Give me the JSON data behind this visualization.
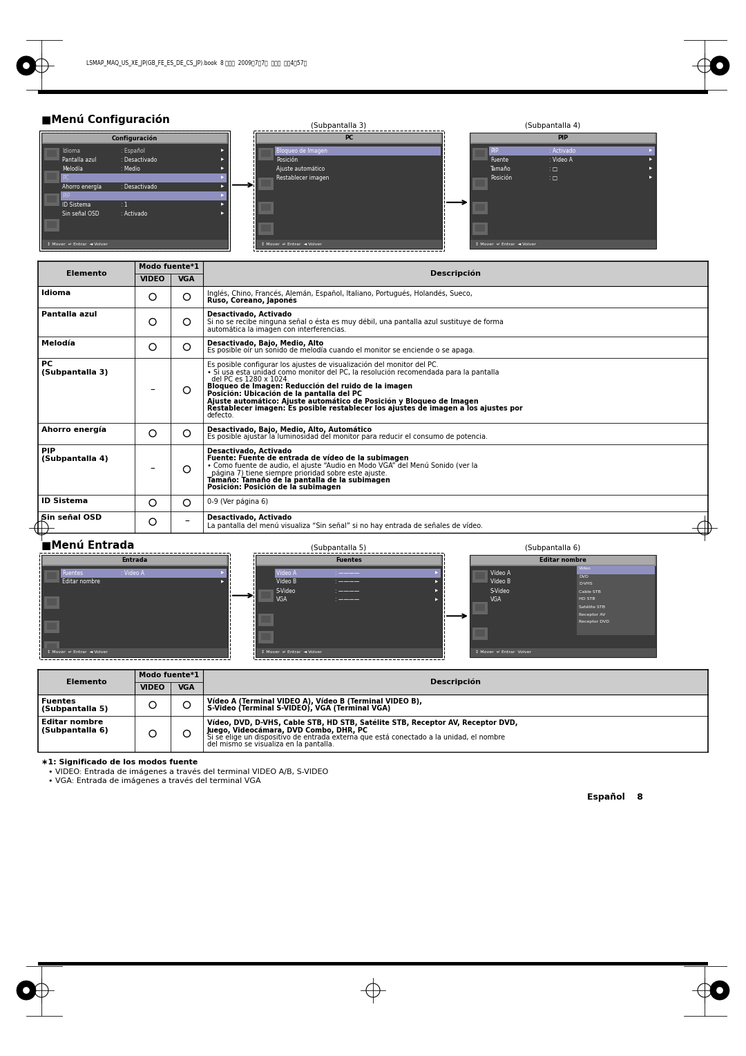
{
  "bg_color": "#ffffff",
  "page_header_text": "LSMAP_MAQ_US_XE_JP(GB_FE_ES_DE_CS_JP).book  8 ページ  2009年7月7日  火曜日  午後4時57分",
  "section1_title": "■Menú Configuración",
  "section2_title": "■Menú Entrada",
  "subpanel3_label": "(Subpantalla 3)",
  "subpanel4_label": "(Subpantalla 4)",
  "subpanel5_label": "(Subpantalla 5)",
  "subpanel6_label": "(Subpantalla 6)",
  "screen1_title": "Configuración",
  "screen1_lines": [
    [
      "Idioma",
      ": Español",
      true
    ],
    [
      "Pantalla azul",
      ": Desactivado",
      false
    ],
    [
      "Melodía",
      ": Medio",
      false
    ],
    [
      "PC",
      "",
      true
    ],
    [
      "Ahorro energía",
      ": Desactivado",
      false
    ],
    [
      "PIP",
      "",
      true
    ],
    [
      "ID Sistema",
      ": 1",
      false
    ],
    [
      "Sin señal OSD",
      ": Activado",
      false
    ]
  ],
  "screen2_title": "PC",
  "screen2_lines": [
    "Bloqueo de Imagen",
    "Posición",
    "Ajuste automático",
    "Restablecer imagen"
  ],
  "screen3_title": "PIP",
  "screen3_lines": [
    [
      "PIP",
      ": Activado"
    ],
    [
      "Fuente",
      ": Video A"
    ],
    [
      "Tamaño",
      ": □"
    ],
    [
      "Posición",
      ": □"
    ]
  ],
  "screen4_title": "Entrada",
  "screen4_lines": [
    [
      "Fuentes",
      ": Video A"
    ],
    [
      "Editar nombre",
      ""
    ]
  ],
  "screen5_title": "Fuentes",
  "screen5_lines": [
    [
      "Vídeo A",
      ": ————"
    ],
    [
      "Vídeo B",
      ": ————"
    ],
    [
      "S-Video",
      ": ————"
    ],
    [
      "VGA",
      ": ————"
    ]
  ],
  "screen6_title": "Editar nombre",
  "screen6_left": [
    "Vídeo A",
    "Vídeo B",
    "S-Video",
    "VGA"
  ],
  "screen6_right": [
    "Vídeo",
    "DVD",
    "D-VHS",
    "Cable STB",
    "HD STB",
    "Satélite STB",
    "Receptor AV",
    "Receptor DVD"
  ],
  "table1_rows": [
    {
      "element": "Idioma",
      "video": "O",
      "vga": "O",
      "lines": [
        {
          "bold": false,
          "text": "Inglés, Chino, Francés, Alemán, Español, Italiano, Portugués, Holandés, Sueco,"
        },
        {
          "bold": true,
          "text": "Ruso, Coreano, Japonés"
        }
      ]
    },
    {
      "element": "Pantalla azul",
      "video": "O",
      "vga": "O",
      "lines": [
        {
          "bold": true,
          "text": "Desactivado, Activado"
        },
        {
          "bold": false,
          "text": "Si no se recibe ninguna señal o ésta es muy débil, una pantalla azul sustituye de forma"
        },
        {
          "bold": false,
          "text": "automática la imagen con interferencias."
        }
      ]
    },
    {
      "element": "Melodía",
      "video": "O",
      "vga": "O",
      "lines": [
        {
          "bold": true,
          "text": "Desactivado, Bajo, Medio, Alto"
        },
        {
          "bold": false,
          "text": "Es posible oír un sonido de melodía cuando el monitor se enciende o se apaga."
        }
      ]
    },
    {
      "element": "PC\n(Subpantalla 3)",
      "video": "–",
      "vga": "O",
      "lines": [
        {
          "bold": false,
          "text": "Es posible configurar los ajustes de visualización del monitor del PC."
        },
        {
          "bold": false,
          "text": "• Si usa esta unidad como monitor del PC, la resolución recomendada para la pantalla"
        },
        {
          "bold": false,
          "text": "  del PC es 1280 x 1024."
        },
        {
          "bold": true,
          "text": "Bloqueo de Imagen: Reducción del ruido de la imagen"
        },
        {
          "bold": true,
          "text": "Posición: Ubicación de la pantalla del PC"
        },
        {
          "bold": true,
          "text": "Ajuste automático: Ajuste automático de Posición y Bloqueo de Imagen"
        },
        {
          "bold": true,
          "text": "Restablecer imagen: Es posible restablecer los ajustes de imagen a los ajustes por"
        },
        {
          "bold": false,
          "text": "defecto."
        }
      ]
    },
    {
      "element": "Ahorro energía",
      "video": "O",
      "vga": "O",
      "lines": [
        {
          "bold": true,
          "text": "Desactivado, Bajo, Medio, Alto, Automático"
        },
        {
          "bold": false,
          "text": "Es posible ajustar la luminosidad del monitor para reducir el consumo de potencia."
        }
      ]
    },
    {
      "element": "PIP\n(Subpantalla 4)",
      "video": "–",
      "vga": "O",
      "lines": [
        {
          "bold": true,
          "text": "Desactivado, Activado"
        },
        {
          "bold": true,
          "text": "Fuente: Fuente de entrada de vídeo de la subimagen"
        },
        {
          "bold": false,
          "text": "• Como fuente de audio, el ajuste “Audio en Modo VGA” del Menú Sonido (ver la"
        },
        {
          "bold": false,
          "text": "  página 7) tiene siempre prioridad sobre este ajuste."
        },
        {
          "bold": true,
          "text": "Tamaño: Tamaño de la pantalla de la subimagen"
        },
        {
          "bold": true,
          "text": "Posición: Posición de la subimagen"
        }
      ]
    },
    {
      "element": "ID Sistema",
      "video": "O",
      "vga": "O",
      "lines": [
        {
          "bold": false,
          "text": "0-9 (Ver página 6)"
        }
      ]
    },
    {
      "element": "Sin señal OSD",
      "video": "O",
      "vga": "–",
      "lines": [
        {
          "bold": true,
          "text": "Desactivado, Activado"
        },
        {
          "bold": false,
          "text": "La pantalla del menú visualiza “Sin señal” si no hay entrada de señales de vídeo."
        }
      ]
    }
  ],
  "table2_rows": [
    {
      "element": "Fuentes\n(Subpantalla 5)",
      "video": "O",
      "vga": "O",
      "lines": [
        {
          "bold": true,
          "text": "Vídeo A (Terminal VIDEO A), Vídeo B (Terminal VIDEO B),"
        },
        {
          "bold": true,
          "text": "S-Video (Terminal S-VIDEO), VGA (Terminal VGA)"
        }
      ]
    },
    {
      "element": "Editar nombre\n(Subpantalla 6)",
      "video": "O",
      "vga": "O",
      "lines": [
        {
          "bold": true,
          "text": "Vídeo, DVD, D-VHS, Cable STB, HD STB, Satélite STB, Receptor AV, Receptor DVD,"
        },
        {
          "bold": true,
          "text": "Juego, Videocámara, DVD Combo, DHR, PC"
        },
        {
          "bold": false,
          "text": "Si se elige un dispositivo de entrada externa que está conectado a la unidad, el nombre"
        },
        {
          "bold": false,
          "text": "del mismo se visualiza en la pantalla."
        }
      ]
    }
  ],
  "footnote_title": "∗1: Significado de los modos fuente",
  "footnote_lines": [
    "• VIDEO: Entrada de imágenes a través del terminal VIDEO A/B, S-VIDEO",
    "• VGA: Entrada de imágenes a través del terminal VGA"
  ],
  "page_footer": "Español    8"
}
